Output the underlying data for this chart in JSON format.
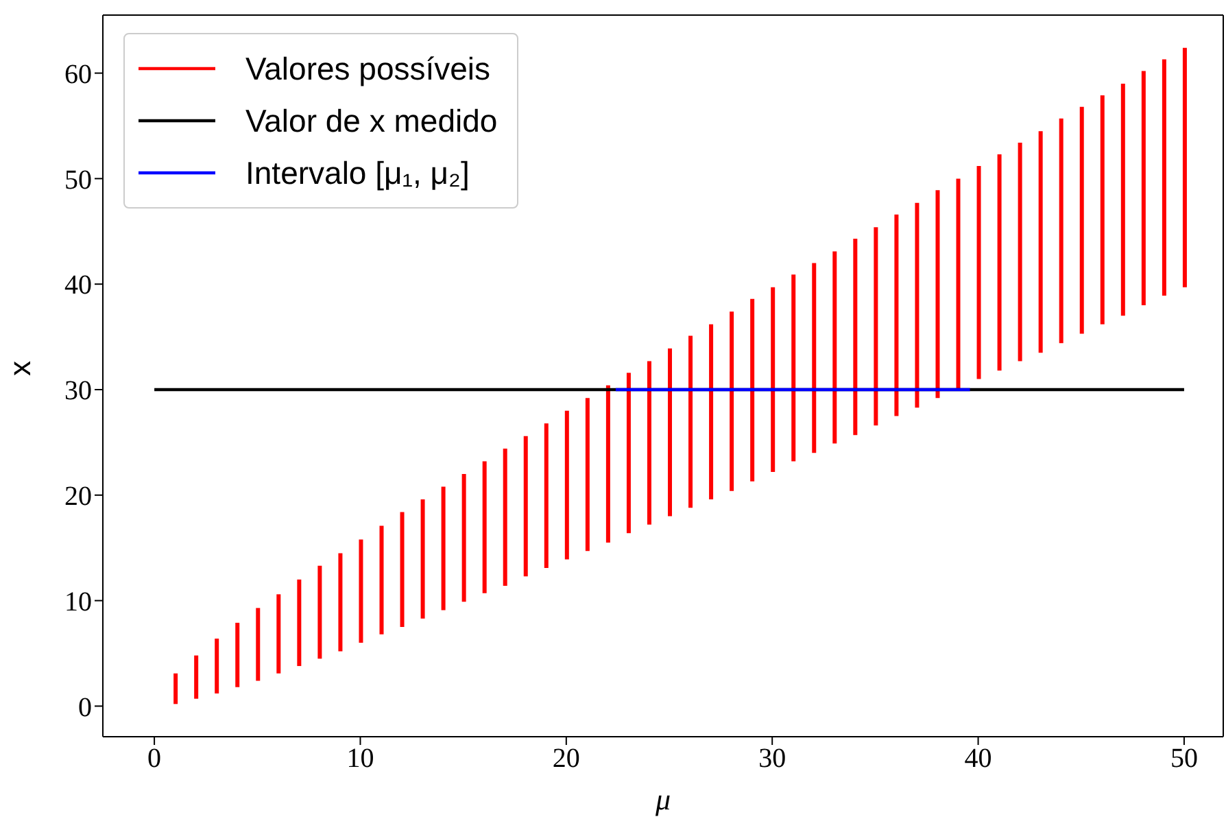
{
  "chart_data": {
    "type": "bar",
    "xlabel": "μ",
    "ylabel": "x",
    "xlim": [
      -2.5,
      51.9
    ],
    "ylim": [
      -2.9,
      65.5
    ],
    "xticks": [
      0,
      10,
      20,
      30,
      40,
      50
    ],
    "yticks": [
      0,
      10,
      20,
      30,
      40,
      50,
      60
    ],
    "grid": false,
    "legend": "top left",
    "series": [
      {
        "name": "Valores possíveis",
        "color": "#ff0000",
        "x": [
          1,
          2,
          3,
          4,
          5,
          6,
          7,
          8,
          9,
          10,
          11,
          12,
          13,
          14,
          15,
          16,
          17,
          18,
          19,
          20,
          21,
          22,
          23,
          24,
          25,
          26,
          27,
          28,
          29,
          30,
          31,
          32,
          33,
          34,
          35,
          36,
          37,
          38,
          39,
          40,
          41,
          42,
          43,
          44,
          45,
          46,
          47,
          48,
          49,
          50
        ],
        "base": [
          0.2,
          0.7,
          1.2,
          1.8,
          2.4,
          3.1,
          3.8,
          4.5,
          5.2,
          6.0,
          6.8,
          7.5,
          8.3,
          9.1,
          9.9,
          10.7,
          11.4,
          12.3,
          13.1,
          13.9,
          14.7,
          15.5,
          16.4,
          17.2,
          18.0,
          18.8,
          19.6,
          20.4,
          21.3,
          22.2,
          23.2,
          24.0,
          24.9,
          25.7,
          26.6,
          27.5,
          28.3,
          29.2,
          30.1,
          31.0,
          31.8,
          32.7,
          33.5,
          34.4,
          35.3,
          36.2,
          37.0,
          38.0,
          38.9,
          39.7
        ],
        "values": [
          2.9,
          4.1,
          5.2,
          6.1,
          6.9,
          7.5,
          8.2,
          8.8,
          9.3,
          9.8,
          10.3,
          10.9,
          11.3,
          11.7,
          12.1,
          12.5,
          13.0,
          13.3,
          13.7,
          14.1,
          14.5,
          14.9,
          15.2,
          15.5,
          15.9,
          16.3,
          16.6,
          17.0,
          17.3,
          17.5,
          17.7,
          18.0,
          18.2,
          18.6,
          18.8,
          19.1,
          19.4,
          19.7,
          19.9,
          20.2,
          20.5,
          20.7,
          21.0,
          21.3,
          21.5,
          21.7,
          22.0,
          22.2,
          22.4,
          22.7
        ]
      },
      {
        "name": "Valor de x medido",
        "type": "line",
        "color": "#000000",
        "x": [
          0,
          50
        ],
        "values": [
          30,
          30
        ]
      },
      {
        "name": "Intervalo [μ₁, μ₂]",
        "type": "line",
        "color": "#0000ff",
        "x": [
          22.4,
          39.6
        ],
        "values": [
          30,
          30
        ]
      }
    ]
  }
}
